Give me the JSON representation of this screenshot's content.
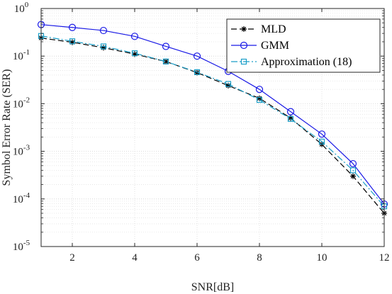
{
  "chart_data": {
    "type": "line",
    "title": "",
    "xlabel": "SNR[dB]",
    "ylabel": "Symbol Error Rate (SER)",
    "xlim": [
      1,
      12
    ],
    "ylim": [
      1e-05,
      1
    ],
    "yscale": "log",
    "grid": true,
    "legend_position": "top-right",
    "x_ticks": [
      2,
      4,
      6,
      8,
      10,
      12
    ],
    "x_tick_labels": [
      "2",
      "4",
      "6",
      "8",
      "10",
      "12"
    ],
    "y_ticks": [
      1e-05,
      0.0001,
      0.001,
      0.01,
      0.1,
      1
    ],
    "y_tick_labels": [
      {
        "base": "10",
        "exp": "-5"
      },
      {
        "base": "10",
        "exp": "-4"
      },
      {
        "base": "10",
        "exp": "-3"
      },
      {
        "base": "10",
        "exp": "-2"
      },
      {
        "base": "10",
        "exp": "-1"
      },
      {
        "base": "10",
        "exp": "0"
      }
    ],
    "x": [
      1,
      2,
      3,
      4,
      5,
      6,
      7,
      8,
      9,
      10,
      11,
      12
    ],
    "series": [
      {
        "name": "MLD",
        "color": "#000000",
        "dash": "8,4",
        "marker": "star",
        "values": [
          0.24,
          0.195,
          0.15,
          0.11,
          0.077,
          0.045,
          0.024,
          0.013,
          0.005,
          0.0014,
          0.0003,
          5e-05
        ]
      },
      {
        "name": "GMM",
        "color": "#1919e6",
        "dash": "",
        "marker": "circle",
        "values": [
          0.46,
          0.4,
          0.345,
          0.26,
          0.16,
          0.1,
          0.048,
          0.02,
          0.0068,
          0.0023,
          0.00055,
          7.8e-05
        ]
      },
      {
        "name": "Approximation (18)",
        "color": "#1a9ec8",
        "dash": "9,3,2,3",
        "marker": "square",
        "values": [
          0.265,
          0.205,
          0.16,
          0.115,
          0.077,
          0.046,
          0.026,
          0.012,
          0.0048,
          0.0016,
          0.0004,
          7e-05
        ]
      }
    ]
  }
}
